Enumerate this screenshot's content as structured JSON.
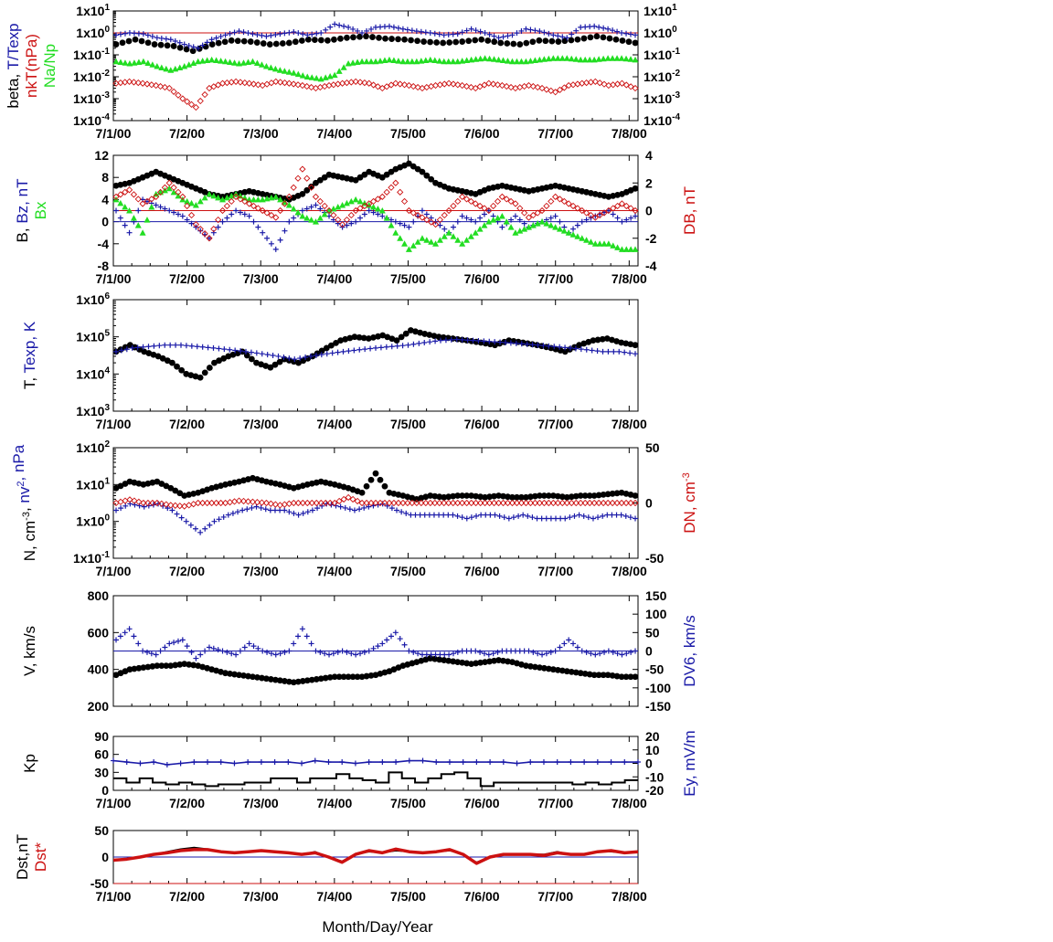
{
  "colors": {
    "black": "#000000",
    "blue": "#1a1aa8",
    "red": "#cc1111",
    "green": "#22dd22",
    "ref_red": "#cc1111",
    "ref_blue": "#1a1aa8"
  },
  "chart_data": [
    {
      "id": "p1",
      "type": "scatter",
      "yscale": "log",
      "ylim_exp": [
        -4,
        1
      ],
      "ytick_labels": [
        "1x10-4",
        "1x10-3",
        "1x10-2",
        "1x10-1",
        "1x100",
        "1x101"
      ],
      "ylabel_lines": [
        [
          "beta, ",
          "T/Texp"
        ],
        [
          "nkT(nPa)"
        ],
        [
          "Na/Np"
        ]
      ],
      "series": [
        {
          "color": "black",
          "values": [
            0.3,
            0.5,
            0.3,
            0.25,
            0.15,
            0.3,
            0.45,
            0.4,
            0.3,
            0.35,
            0.5,
            0.45,
            0.6,
            0.7,
            0.55,
            0.5,
            0.4,
            0.35,
            0.4,
            0.5,
            0.35,
            0.3,
            0.45,
            0.4,
            0.5,
            0.7,
            0.5,
            0.35
          ]
        },
        {
          "color": "blue",
          "values": [
            0.8,
            1.0,
            0.9,
            0.6,
            0.5,
            0.3,
            0.2,
            0.5,
            0.8,
            1.2,
            0.9,
            0.7,
            0.9,
            1.1,
            0.8,
            1.0,
            2.5,
            1.8,
            1.0,
            1.8,
            2.0,
            1.5,
            1.2,
            1.0,
            0.8,
            0.9,
            1.5,
            1.0,
            0.6,
            0.8,
            1.5,
            1.2,
            0.8,
            0.6,
            1.8,
            2.0,
            1.5,
            1.0,
            0.8
          ]
        },
        {
          "color": "green",
          "values": [
            0.05,
            0.04,
            0.05,
            0.03,
            0.02,
            0.03,
            0.05,
            0.06,
            0.05,
            0.04,
            0.05,
            0.03,
            0.02,
            0.015,
            0.01,
            0.008,
            0.012,
            0.04,
            0.05,
            0.05,
            0.06,
            0.05,
            0.05,
            0.06,
            0.05,
            0.05,
            0.06,
            0.07,
            0.06,
            0.05,
            0.05,
            0.06,
            0.07,
            0.07,
            0.06,
            0.06,
            0.07,
            0.07,
            0.06
          ]
        },
        {
          "color": "red",
          "values": [
            0.005,
            0.006,
            0.005,
            0.004,
            0.003,
            0.001,
            0.0004,
            0.003,
            0.005,
            0.006,
            0.005,
            0.004,
            0.006,
            0.005,
            0.004,
            0.003,
            0.004,
            0.005,
            0.006,
            0.005,
            0.003,
            0.005,
            0.004,
            0.003,
            0.004,
            0.005,
            0.004,
            0.003,
            0.005,
            0.004,
            0.003,
            0.004,
            0.003,
            0.002,
            0.004,
            0.005,
            0.006,
            0.004,
            0.005,
            0.003
          ]
        }
      ],
      "ref_lines": [
        {
          "y": 1,
          "color": "red"
        }
      ]
    },
    {
      "id": "p2",
      "type": "scatter",
      "ylim": [
        -8,
        12
      ],
      "yticks": [
        -8,
        -4,
        0,
        4,
        8,
        12
      ],
      "ylim2": [
        -4,
        4
      ],
      "yticks2": [
        -4,
        -2,
        0,
        2,
        4
      ],
      "ylabel_lines": [
        [
          "B, ",
          "Bz, nT"
        ],
        [
          "Bx"
        ]
      ],
      "ylabel2": "DB, nT",
      "series": [
        {
          "color": "black",
          "values": [
            6.5,
            7,
            8,
            9,
            8,
            7,
            6,
            5,
            4.5,
            5,
            5.5,
            5,
            4.5,
            4,
            5,
            7,
            8.5,
            8,
            7.5,
            9,
            8,
            9.5,
            10.5,
            9,
            7,
            6,
            5.5,
            5,
            6,
            6.5,
            6,
            5.5,
            6,
            6.5,
            6,
            5.5,
            5,
            4.5,
            5,
            6
          ]
        },
        {
          "color": "blue",
          "values": [
            2,
            -2,
            4,
            3,
            2,
            1,
            -1,
            -3,
            0,
            2,
            1,
            -2,
            -5,
            0,
            2,
            3,
            1,
            -1,
            0,
            2,
            1,
            0,
            -1,
            2,
            0,
            -2,
            1,
            0,
            2,
            -1,
            1,
            -1,
            0,
            1,
            -2,
            0,
            1,
            2,
            0,
            1
          ]
        },
        {
          "color": "green",
          "values": [
            4,
            2,
            -2,
            5,
            6,
            4,
            3,
            5,
            4,
            5,
            4,
            4,
            4.5,
            3,
            1,
            0,
            2,
            3,
            4,
            3,
            2,
            -2,
            -5,
            -3,
            -4,
            -2,
            -4,
            -2,
            0,
            1,
            -2,
            -1,
            0,
            -1,
            -2,
            -3,
            -4,
            -4,
            -5,
            -5
          ]
        },
        {
          "color": "red",
          "axis": 2,
          "values": [
            1,
            1.5,
            0.5,
            1,
            2,
            1,
            -1,
            -2,
            0,
            1,
            0.5,
            0,
            -0.5,
            1,
            3,
            1,
            0,
            -1,
            0,
            0.5,
            1,
            2,
            0,
            -0.5,
            -1,
            0,
            1,
            0.5,
            0,
            1,
            0.5,
            -0.5,
            0,
            1,
            0.5,
            0,
            -0.5,
            0,
            0.5,
            0
          ]
        }
      ],
      "ref_lines": [
        {
          "y": 0,
          "color": "blue"
        },
        {
          "y": 2,
          "color": "red"
        }
      ]
    },
    {
      "id": "p3",
      "type": "scatter",
      "yscale": "log",
      "ylim_exp": [
        3,
        6
      ],
      "ytick_labels": [
        "1x103",
        "1x104",
        "1x105",
        "1x106"
      ],
      "ylabel_lines": [
        [
          "T, ",
          "Texp, K"
        ]
      ],
      "series": [
        {
          "color": "black",
          "values": [
            40000,
            60000,
            40000,
            30000,
            20000,
            10000,
            8000,
            20000,
            30000,
            40000,
            20000,
            15000,
            25000,
            20000,
            30000,
            50000,
            80000,
            100000,
            90000,
            110000,
            80000,
            150000,
            120000,
            100000,
            90000,
            80000,
            70000,
            60000,
            80000,
            70000,
            60000,
            50000,
            40000,
            60000,
            80000,
            90000,
            70000,
            60000
          ]
        },
        {
          "color": "blue",
          "values": [
            40000,
            50000,
            55000,
            60000,
            60000,
            55000,
            50000,
            45000,
            40000,
            35000,
            30000,
            25000,
            30000,
            35000,
            40000,
            45000,
            50000,
            55000,
            60000,
            70000,
            80000,
            85000,
            80000,
            75000,
            70000,
            65000,
            60000,
            55000,
            50000,
            45000,
            40000,
            40000,
            35000
          ]
        }
      ],
      "ref_lines": []
    },
    {
      "id": "p4",
      "type": "scatter",
      "yscale": "log",
      "ylim_exp": [
        -1,
        2
      ],
      "ytick_labels": [
        "1x10-1",
        "1x100",
        "1x101",
        "1x102"
      ],
      "ylim2": [
        -50,
        50
      ],
      "yticks2": [
        -50,
        0,
        50
      ],
      "ylabel_lines": [
        [
          "N, cm-3, ",
          "nv2, nPa"
        ]
      ],
      "ylabel2": "DN, cm-3",
      "series": [
        {
          "color": "black",
          "values": [
            8,
            12,
            10,
            12,
            8,
            5,
            6,
            8,
            10,
            12,
            15,
            12,
            10,
            8,
            10,
            12,
            10,
            8,
            6,
            20,
            6,
            5,
            4,
            5,
            4.5,
            5,
            5,
            4.5,
            5,
            4.5,
            4.5,
            5,
            5,
            4.5,
            5,
            5,
            5.5,
            6,
            5
          ]
        },
        {
          "color": "blue",
          "values": [
            2,
            3,
            2.5,
            3,
            2,
            1,
            0.5,
            1,
            1.5,
            2,
            2.5,
            2,
            2,
            1.5,
            2,
            3,
            2.5,
            2,
            2.5,
            3,
            2,
            1.5,
            1.5,
            1.5,
            1.5,
            1.2,
            1.5,
            1.5,
            1.2,
            1.5,
            1.2,
            1.2,
            1.2,
            1.5,
            1.2,
            1.5,
            1.5,
            1.2
          ]
        },
        {
          "color": "red",
          "axis": 2,
          "values": [
            0,
            3,
            0,
            0,
            -2,
            -3,
            0,
            0,
            0,
            2,
            1,
            0,
            -2,
            0,
            0,
            0,
            0,
            5,
            0,
            0,
            0,
            0,
            0,
            0,
            0,
            0,
            0,
            0,
            0,
            0,
            0,
            0,
            0,
            0,
            0,
            0,
            0,
            0,
            0
          ]
        }
      ],
      "ref_lines": []
    },
    {
      "id": "p5",
      "type": "scatter",
      "ylim": [
        200,
        800
      ],
      "yticks": [
        200,
        400,
        600,
        800
      ],
      "ylim2": [
        -150,
        150
      ],
      "yticks2": [
        -150,
        -100,
        -50,
        0,
        50,
        100,
        150
      ],
      "ylabel_lines": [
        [
          "V, km/s"
        ]
      ],
      "ylabel2": "DV6, km/s",
      "series": [
        {
          "color": "black",
          "values": [
            370,
            400,
            410,
            420,
            420,
            430,
            420,
            400,
            380,
            370,
            360,
            350,
            340,
            330,
            340,
            350,
            360,
            360,
            360,
            370,
            390,
            420,
            440,
            460,
            450,
            440,
            430,
            440,
            450,
            440,
            420,
            410,
            400,
            390,
            380,
            370,
            370,
            360,
            360
          ]
        },
        {
          "color": "blue",
          "axis": 2,
          "values": [
            30,
            60,
            0,
            -10,
            20,
            30,
            -20,
            10,
            0,
            -10,
            20,
            0,
            -10,
            0,
            60,
            0,
            -10,
            0,
            -10,
            0,
            20,
            50,
            0,
            -10,
            -10,
            -10,
            0,
            0,
            -10,
            0,
            0,
            0,
            -10,
            0,
            30,
            0,
            -10,
            0,
            -10,
            0
          ]
        }
      ],
      "ref_lines": [
        {
          "y2": 0,
          "color": "blue"
        }
      ]
    },
    {
      "id": "p6",
      "type": "line",
      "ylim": [
        0,
        90
      ],
      "yticks": [
        0,
        30,
        60,
        90
      ],
      "ylim2": [
        -20,
        20
      ],
      "yticks2": [
        -20,
        -10,
        0,
        10,
        20
      ],
      "ylabel_lines": [
        [
          "Kp"
        ]
      ],
      "ylabel2": "Ey, mV/m",
      "series": [
        {
          "color": "black",
          "kind": "step",
          "values": [
            20,
            13,
            20,
            13,
            10,
            13,
            10,
            7,
            10,
            10,
            13,
            13,
            20,
            20,
            13,
            20,
            20,
            27,
            20,
            17,
            13,
            30,
            20,
            13,
            20,
            27,
            30,
            20,
            7,
            13,
            13,
            13,
            13,
            13,
            13,
            10,
            13,
            10,
            13,
            17
          ]
        },
        {
          "color": "blue",
          "axis": 2,
          "values": [
            2,
            1,
            0,
            1,
            -1,
            0,
            1,
            1,
            1,
            0,
            1,
            1,
            1,
            1,
            0,
            2,
            1,
            1,
            0,
            1,
            1,
            1,
            2,
            2,
            1,
            1,
            1,
            1,
            1,
            1,
            0,
            1,
            1,
            1,
            1,
            1,
            1,
            1,
            1,
            1
          ]
        }
      ],
      "ref_lines": []
    },
    {
      "id": "p7",
      "type": "line",
      "ylim": [
        -50,
        50
      ],
      "yticks": [
        -50,
        0,
        50
      ],
      "ylabel_lines": [
        [
          "Dst,nT"
        ],
        [
          "Dst*"
        ]
      ],
      "series": [
        {
          "color": "black",
          "values": [
            -5,
            -3,
            0,
            5,
            10,
            15,
            18,
            15,
            10,
            8,
            10,
            12,
            10,
            8,
            5,
            10,
            0,
            -8,
            5,
            10,
            8,
            12,
            10,
            8,
            10,
            12,
            5,
            -10,
            0,
            5,
            5,
            5,
            5,
            10,
            5,
            5,
            10,
            10,
            8,
            10
          ]
        },
        {
          "color": "red",
          "values": [
            -6,
            -4,
            0,
            5,
            8,
            12,
            14,
            14,
            10,
            8,
            10,
            12,
            10,
            8,
            5,
            8,
            0,
            -10,
            5,
            12,
            8,
            15,
            10,
            8,
            10,
            14,
            5,
            -12,
            0,
            5,
            5,
            5,
            3,
            8,
            5,
            5,
            10,
            12,
            8,
            10
          ]
        }
      ],
      "ref_lines": [
        {
          "y": 0,
          "color": "blue"
        },
        {
          "y": -50,
          "color": "red"
        }
      ]
    }
  ],
  "shared_x": {
    "tick_labels": [
      "7/1/00",
      "7/2/00",
      "7/3/00",
      "7/4/00",
      "7/5/00",
      "7/6/00",
      "7/7/00",
      "7/8/00"
    ],
    "x_end": 7.12,
    "xlabel": "Month/Day/Year"
  }
}
